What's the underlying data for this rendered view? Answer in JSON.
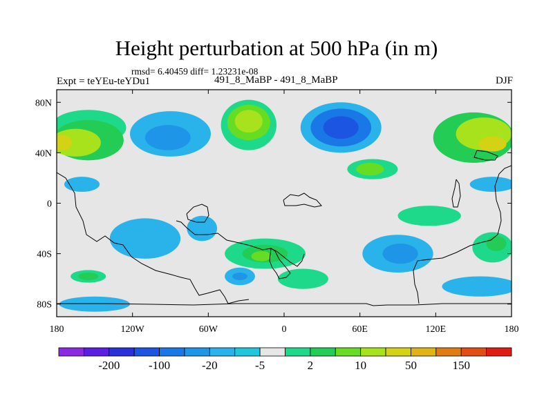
{
  "chart_data": {
    "type": "heatmap",
    "title": "Height perturbation at 500 hPa (in m)",
    "stats_line": "rmsd= 6.40459 diff= 1.23231e-08",
    "left_label": "Expt = teYEu-teYDu1",
    "center_label": "491_8_MaBP - 491_8_MaBP",
    "right_label": "DJF",
    "x_axis": {
      "range": [
        -180,
        180
      ],
      "tick_values": [
        -180,
        -120,
        -60,
        0,
        60,
        120,
        180
      ],
      "tick_labels": [
        "180",
        "120W",
        "60W",
        "0",
        "60E",
        "120E",
        "180"
      ]
    },
    "y_axis": {
      "range": [
        -90,
        90
      ],
      "tick_values": [
        80,
        40,
        0,
        -40,
        -80
      ],
      "tick_labels": [
        "80N",
        "40N",
        "0",
        "40S",
        "80S"
      ]
    },
    "colorbar": {
      "colors": [
        "#8a2be2",
        "#5a1fe0",
        "#2b30d8",
        "#1c55e0",
        "#1a78e6",
        "#1f95e8",
        "#2ab3ea",
        "#20c6dc",
        "#e6e6e6",
        "#1fd98a",
        "#22cc55",
        "#66dd22",
        "#a8e21c",
        "#d4d214",
        "#e0b414",
        "#e07c14",
        "#e04e14",
        "#e01c14"
      ],
      "labels": [
        "-200",
        "-100",
        "-20",
        "-5",
        "2",
        "10",
        "50",
        "150"
      ]
    },
    "regions": [
      {
        "name": "na-arctic-positive",
        "lon": -155,
        "lat": 60,
        "rlon": 30,
        "rlat": 14,
        "color": "#1fd98a"
      },
      {
        "name": "pacific-north-positive",
        "lon": -155,
        "lat": 50,
        "rlon": 28,
        "rlat": 16,
        "color": "#22cc55"
      },
      {
        "name": "pacific-north-core",
        "lon": -165,
        "lat": 48,
        "rlon": 20,
        "rlat": 11,
        "color": "#a8e21c"
      },
      {
        "name": "pacific-north-peak",
        "lon": -176,
        "lat": 48,
        "rlon": 8,
        "rlat": 6,
        "color": "#d4d214"
      },
      {
        "name": "north-america-negative",
        "lon": -90,
        "lat": 55,
        "rlon": 32,
        "rlat": 18,
        "color": "#2ab3ea"
      },
      {
        "name": "north-america-negative-core",
        "lon": -92,
        "lat": 52,
        "rlon": 18,
        "rlat": 10,
        "color": "#1f95e8"
      },
      {
        "name": "atlantic-positive",
        "lon": -28,
        "lat": 62,
        "rlon": 22,
        "rlat": 20,
        "color": "#1fd98a"
      },
      {
        "name": "atlantic-positive-mid",
        "lon": -28,
        "lat": 64,
        "rlon": 17,
        "rlat": 14,
        "color": "#66dd22"
      },
      {
        "name": "atlantic-positive-core",
        "lon": -28,
        "lat": 65,
        "rlon": 11,
        "rlat": 9,
        "color": "#a8e21c"
      },
      {
        "name": "eurasia-negative",
        "lon": 45,
        "lat": 60,
        "rlon": 32,
        "rlat": 20,
        "color": "#2ab3ea"
      },
      {
        "name": "eurasia-negative-mid",
        "lon": 45,
        "lat": 60,
        "rlon": 24,
        "rlat": 15,
        "color": "#1a78e6"
      },
      {
        "name": "eurasia-negative-core",
        "lon": 45,
        "lat": 60,
        "rlon": 14,
        "rlat": 9,
        "color": "#1c55e0"
      },
      {
        "name": "asia-positive",
        "lon": 70,
        "lat": 27,
        "rlon": 20,
        "rlat": 8,
        "color": "#1fd98a"
      },
      {
        "name": "asia-positive-core",
        "lon": 68,
        "lat": 27,
        "rlon": 11,
        "rlat": 5,
        "color": "#66dd22"
      },
      {
        "name": "pacific-east-positive",
        "lon": 150,
        "lat": 52,
        "rlon": 32,
        "rlat": 20,
        "color": "#22cc55"
      },
      {
        "name": "pacific-east-mid",
        "lon": 158,
        "lat": 55,
        "rlon": 22,
        "rlat": 13,
        "color": "#a8e21c"
      },
      {
        "name": "pacific-east-core",
        "lon": 165,
        "lat": 47,
        "rlon": 11,
        "rlat": 6,
        "color": "#d4d214"
      },
      {
        "name": "tropical-pacific-negative",
        "lon": -160,
        "lat": 15,
        "rlon": 14,
        "rlat": 6,
        "color": "#2ab3ea"
      },
      {
        "name": "tropical-east-negative",
        "lon": 165,
        "lat": 15,
        "rlon": 18,
        "rlat": 6,
        "color": "#2ab3ea"
      },
      {
        "name": "south-pacific-negative",
        "lon": -110,
        "lat": -28,
        "rlon": 28,
        "rlat": 16,
        "color": "#2ab3ea"
      },
      {
        "name": "south-america-negative",
        "lon": -65,
        "lat": -20,
        "rlon": 12,
        "rlat": 10,
        "color": "#2ab3ea"
      },
      {
        "name": "south-atlantic-positive",
        "lon": -15,
        "lat": -40,
        "rlon": 32,
        "rlat": 12,
        "color": "#1fd98a"
      },
      {
        "name": "south-atlantic-core",
        "lon": -15,
        "lat": -40,
        "rlon": 18,
        "rlat": 7,
        "color": "#22cc55"
      },
      {
        "name": "south-atlantic-peak",
        "lon": -18,
        "lat": -42,
        "rlon": 8,
        "rlat": 4,
        "color": "#66dd22"
      },
      {
        "name": "southern-negative-small",
        "lon": -35,
        "lat": -58,
        "rlon": 12,
        "rlat": 7,
        "color": "#2ab3ea"
      },
      {
        "name": "southern-negative-small-core",
        "lon": -35,
        "lat": -58,
        "rlon": 6,
        "rlat": 3,
        "color": "#1f95e8"
      },
      {
        "name": "southern-positive-lane",
        "lon": 15,
        "lat": -60,
        "rlon": 20,
        "rlat": 8,
        "color": "#1fd98a"
      },
      {
        "name": "indian-ocean-negative",
        "lon": 90,
        "lat": -40,
        "rlon": 28,
        "rlat": 15,
        "color": "#2ab3ea"
      },
      {
        "name": "indian-ocean-negative-core",
        "lon": 92,
        "lat": -40,
        "rlon": 14,
        "rlat": 8,
        "color": "#1f95e8"
      },
      {
        "name": "southern-indian-positive",
        "lon": 115,
        "lat": -10,
        "rlon": 25,
        "rlat": 8,
        "color": "#1fd98a"
      },
      {
        "name": "southern-pacific-positive",
        "lon": 165,
        "lat": -35,
        "rlon": 16,
        "rlat": 12,
        "color": "#1fd98a"
      },
      {
        "name": "southern-pacific-core",
        "lon": 168,
        "lat": -32,
        "rlon": 8,
        "rlat": 6,
        "color": "#22cc55"
      },
      {
        "name": "south-pole-negative",
        "lon": 155,
        "lat": -66,
        "rlon": 30,
        "rlat": 8,
        "color": "#2ab3ea"
      },
      {
        "name": "sw-positive",
        "lon": -155,
        "lat": -58,
        "rlon": 14,
        "rlat": 5,
        "color": "#1fd98a"
      },
      {
        "name": "sw-positive-core",
        "lon": -155,
        "lat": -58,
        "rlon": 8,
        "rlat": 3,
        "color": "#22cc55"
      },
      {
        "name": "antarctic-negative",
        "lon": -150,
        "lat": -80,
        "rlon": 28,
        "rlat": 6,
        "color": "#2ab3ea"
      }
    ]
  }
}
